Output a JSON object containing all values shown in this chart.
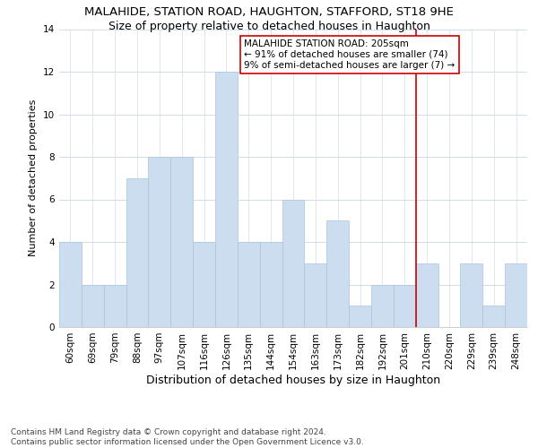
{
  "title": "MALAHIDE, STATION ROAD, HAUGHTON, STAFFORD, ST18 9HE",
  "subtitle": "Size of property relative to detached houses in Haughton",
  "xlabel": "Distribution of detached houses by size in Haughton",
  "ylabel": "Number of detached properties",
  "categories": [
    "60sqm",
    "69sqm",
    "79sqm",
    "88sqm",
    "97sqm",
    "107sqm",
    "116sqm",
    "126sqm",
    "135sqm",
    "144sqm",
    "154sqm",
    "163sqm",
    "173sqm",
    "182sqm",
    "192sqm",
    "201sqm",
    "210sqm",
    "220sqm",
    "229sqm",
    "239sqm",
    "248sqm"
  ],
  "values": [
    4,
    2,
    2,
    7,
    8,
    8,
    4,
    12,
    4,
    4,
    6,
    3,
    5,
    1,
    2,
    2,
    3,
    0,
    3,
    1,
    3
  ],
  "bar_color": "#ccddf0",
  "bar_edge_color": "#a8c4e0",
  "vline_color": "#cc0000",
  "annotation_label": "MALAHIDE STATION ROAD: 205sqm",
  "annotation_line1": "← 91% of detached houses are smaller (74)",
  "annotation_line2": "9% of semi-detached houses are larger (7) →",
  "footer1": "Contains HM Land Registry data © Crown copyright and database right 2024.",
  "footer2": "Contains public sector information licensed under the Open Government Licence v3.0.",
  "ylim": [
    0,
    14
  ],
  "yticks": [
    0,
    2,
    4,
    6,
    8,
    10,
    12,
    14
  ],
  "title_fontsize": 9.5,
  "subtitle_fontsize": 9,
  "xlabel_fontsize": 9,
  "ylabel_fontsize": 8,
  "tick_fontsize": 7.5,
  "annotation_fontsize": 7.5,
  "footer_fontsize": 6.5,
  "bg_color": "#ffffff",
  "grid_color": "#d0dcea"
}
